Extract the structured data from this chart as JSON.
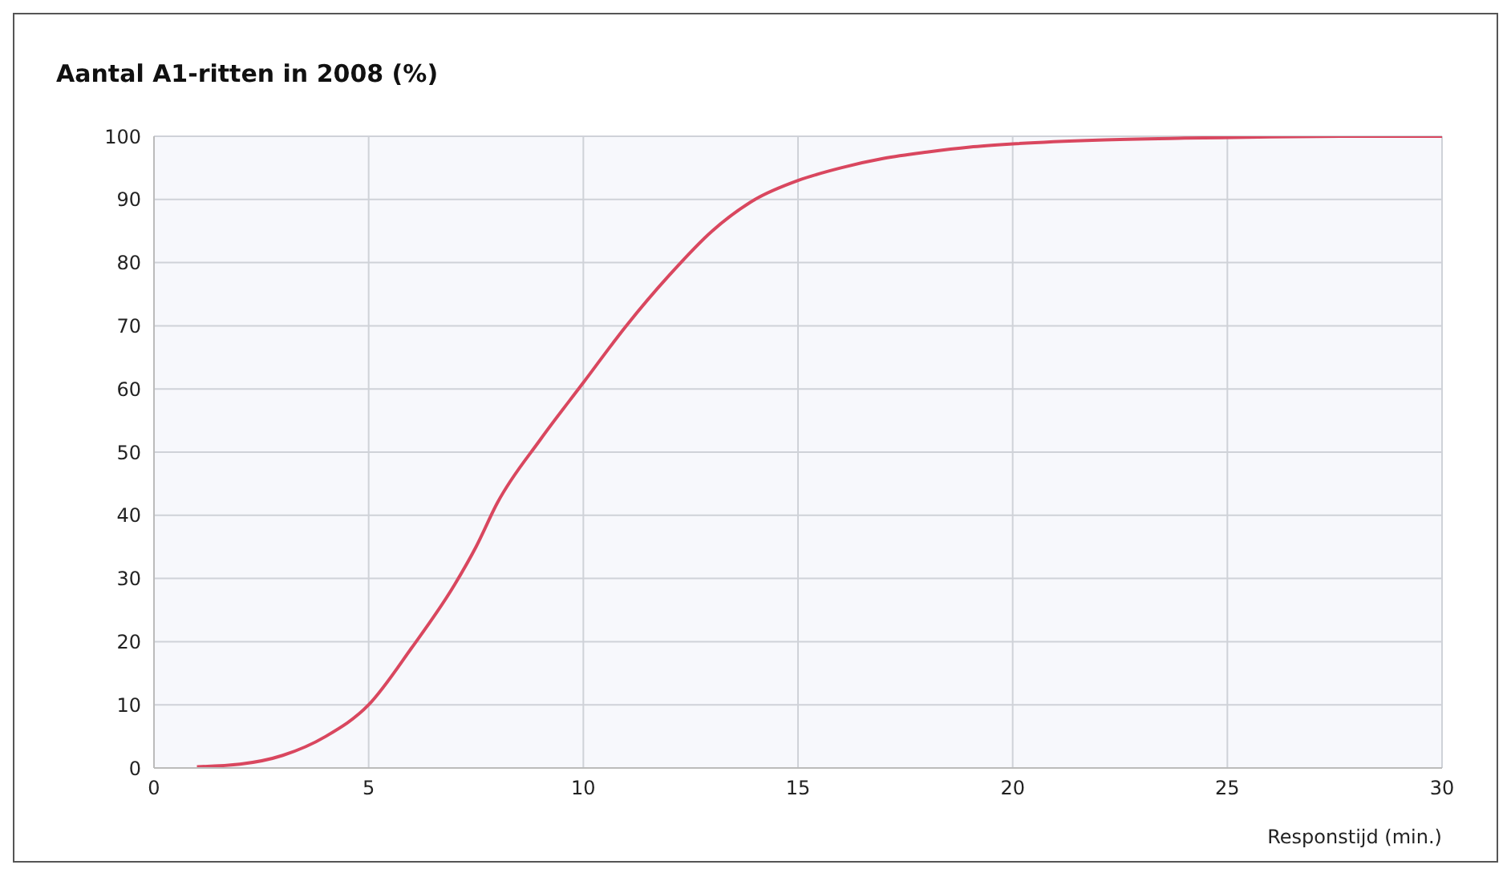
{
  "chart_data": {
    "type": "line",
    "title": "Aantal A1-ritten in 2008 (%)",
    "xlabel": "Responstijd (min.)",
    "series": [
      {
        "color": "#d9475f",
        "x": [
          1,
          2,
          3,
          4,
          5,
          6,
          7,
          7.5,
          8,
          9,
          10,
          11,
          12,
          13,
          14,
          15,
          16,
          17,
          18,
          19,
          20,
          22,
          24,
          26,
          28,
          30
        ],
        "values": [
          0.2,
          0.6,
          2,
          5,
          10,
          19,
          29,
          35,
          42,
          52,
          61,
          70,
          78,
          85,
          90,
          93,
          95,
          96.5,
          97.5,
          98.3,
          98.8,
          99.4,
          99.7,
          99.9,
          100,
          100
        ]
      }
    ],
    "xlim": [
      0,
      30
    ],
    "xticks": [
      0,
      5,
      10,
      15,
      20,
      25,
      30
    ],
    "ylim": [
      0,
      100
    ],
    "yticks": [
      0,
      10,
      20,
      30,
      40,
      50,
      60,
      70,
      80,
      90,
      100
    ],
    "grid": true,
    "marker": "none",
    "line_style": "solid",
    "legend": false
  }
}
